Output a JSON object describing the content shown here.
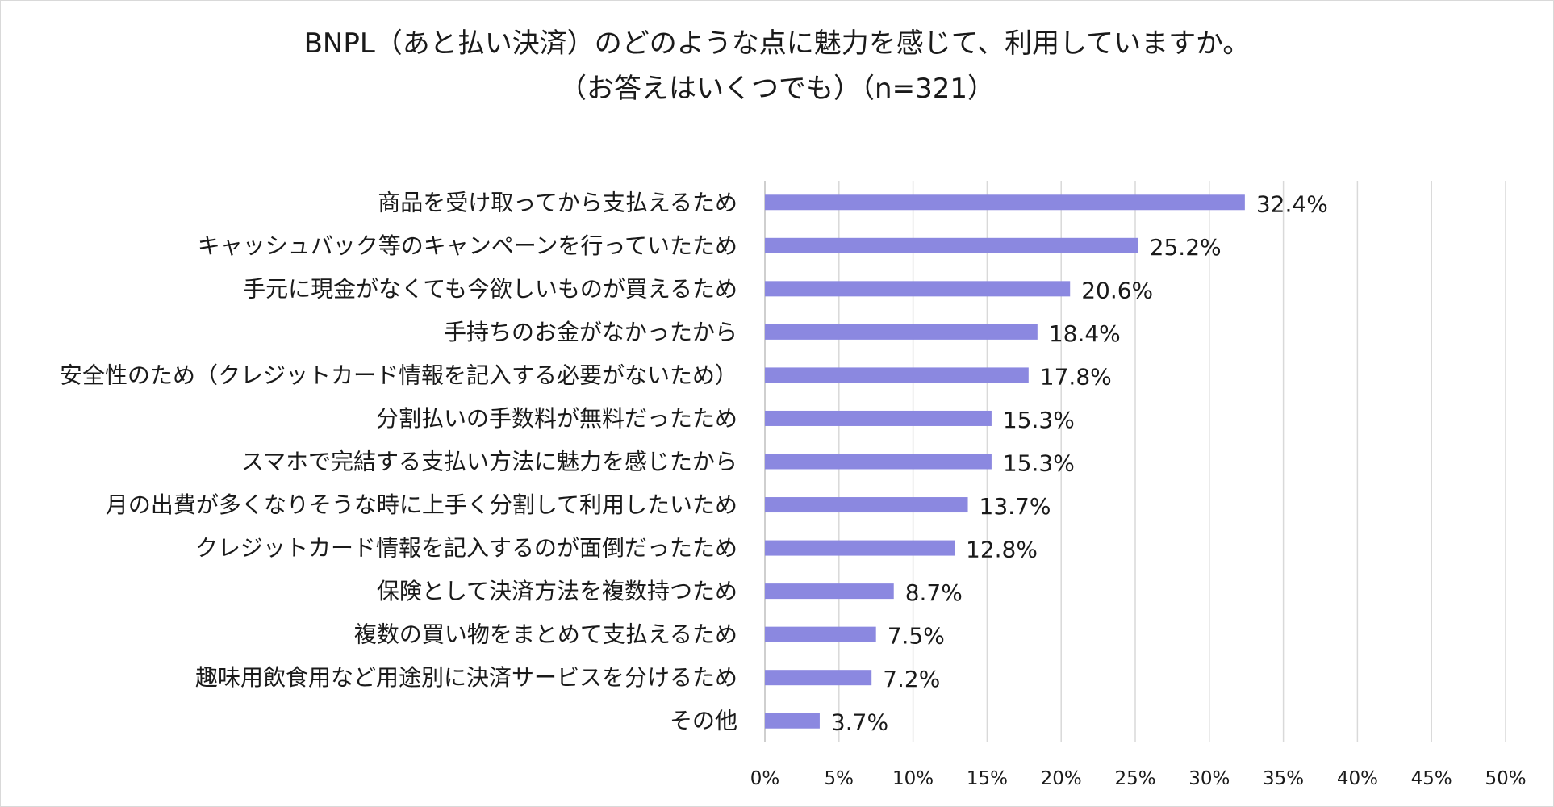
{
  "chart_data": {
    "type": "bar",
    "orientation": "horizontal",
    "title": "BNPL（あと払い決済）のどのような点に魅力を感じて、利用していますか。",
    "subtitle": "（お答えはいくつでも）（n=321）",
    "categories": [
      "商品を受け取ってから支払えるため",
      "キャッシュバック等のキャンペーンを行っていたため",
      "手元に現金がなくても今欲しいものが買えるため",
      "手持ちのお金がなかったから",
      "安全性のため（クレジットカード情報を記入する必要がないため）",
      "分割払いの手数料が無料だったため",
      "スマホで完結する支払い方法に魅力を感じたから",
      "月の出費が多くなりそうな時に上手く分割して利用したいため",
      "クレジットカード情報を記入するのが面倒だったため",
      "保険として決済方法を複数持つため",
      "複数の買い物をまとめて支払えるため",
      "趣味用飲食用など用途別に決済サービスを分けるため",
      "その他"
    ],
    "values": [
      32.4,
      25.2,
      20.6,
      18.4,
      17.8,
      15.3,
      15.3,
      13.7,
      12.8,
      8.7,
      7.5,
      7.2,
      3.7
    ],
    "value_labels": [
      "32.4%",
      "25.2%",
      "20.6%",
      "18.4%",
      "17.8%",
      "15.3%",
      "15.3%",
      "13.7%",
      "12.8%",
      "8.7%",
      "7.5%",
      "7.2%",
      "3.7%"
    ],
    "xlim": [
      0,
      50
    ],
    "xticks": [
      0,
      5,
      10,
      15,
      20,
      25,
      30,
      35,
      40,
      45,
      50
    ],
    "xtick_labels": [
      "0%",
      "5%",
      "10%",
      "15%",
      "20%",
      "25%",
      "30%",
      "35%",
      "40%",
      "45%",
      "50%"
    ],
    "xlabel": "",
    "ylabel": "",
    "grid": true,
    "legend": "none",
    "bar_color": "#8b88e0"
  }
}
